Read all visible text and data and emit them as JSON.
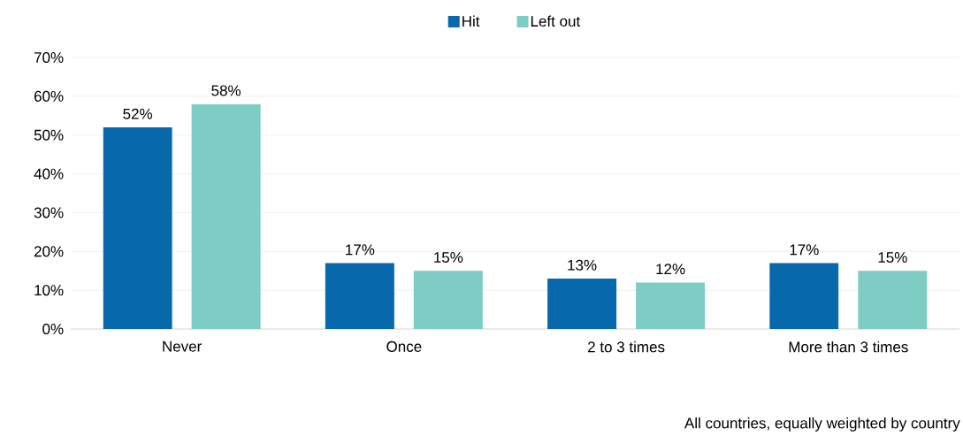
{
  "chart_data": {
    "type": "bar",
    "categories": [
      "Never",
      "Once",
      "2 to 3 times",
      "More than 3 times"
    ],
    "series": [
      {
        "name": "Hit",
        "color": "#0868ac",
        "values": [
          52,
          17,
          13,
          17
        ],
        "value_labels": [
          "52%",
          "17%",
          "13%",
          "17%"
        ]
      },
      {
        "name": "Left out",
        "color": "#7ecdc4",
        "values": [
          58,
          15,
          12,
          15
        ],
        "value_labels": [
          "58%",
          "15%",
          "12%",
          "15%"
        ]
      }
    ],
    "ylim": [
      0,
      70
    ],
    "yticks": [
      {
        "value": 0,
        "label": "0%"
      },
      {
        "value": 10,
        "label": "10%"
      },
      {
        "value": 20,
        "label": "20%"
      },
      {
        "value": 30,
        "label": "30%"
      },
      {
        "value": 40,
        "label": "40%"
      },
      {
        "value": 50,
        "label": "50%"
      },
      {
        "value": 60,
        "label": "60%"
      },
      {
        "value": 70,
        "label": "70%"
      }
    ],
    "grid": "y",
    "legend": "top",
    "annotations": [
      "All countries, equally weighted by country"
    ]
  }
}
